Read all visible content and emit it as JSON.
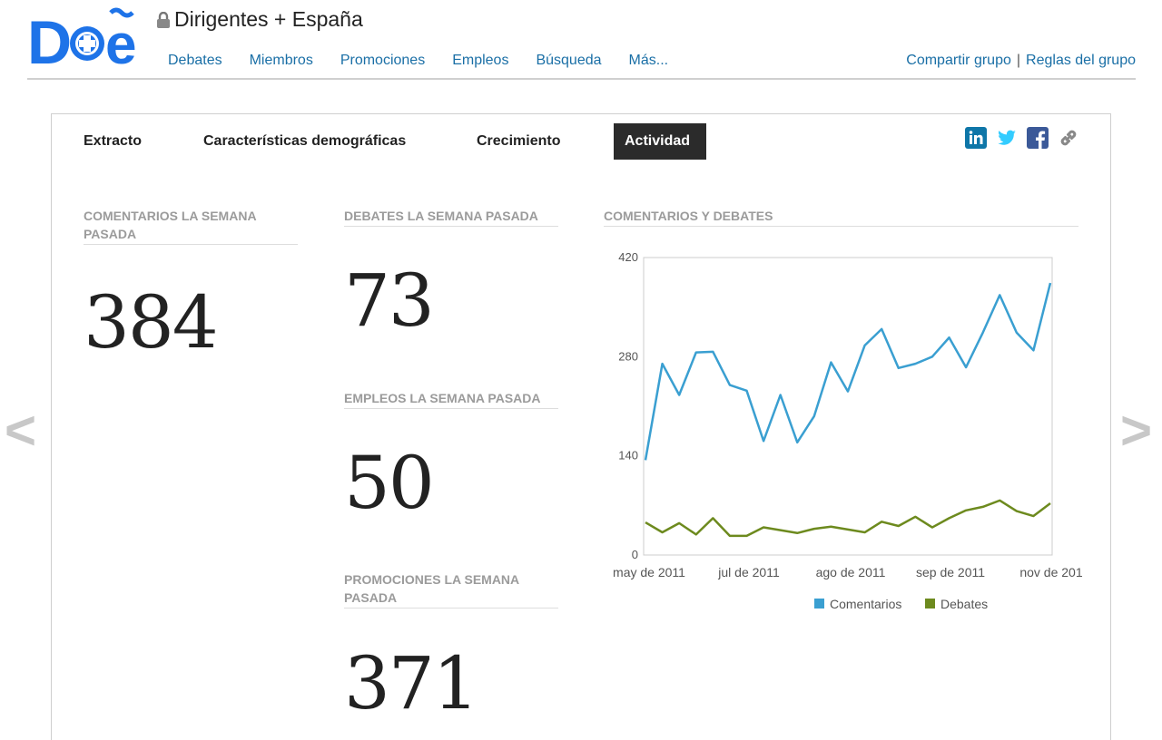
{
  "group": {
    "title": "Dirigentes + España"
  },
  "nav": [
    "Debates",
    "Miembros",
    "Promociones",
    "Empleos",
    "Búsqueda",
    "Más..."
  ],
  "group_links": {
    "share": "Compartir grupo",
    "separator": "|",
    "rules": "Reglas del grupo"
  },
  "tabs": [
    "Extracto",
    "Características demográficas",
    "Crecimiento",
    "Actividad"
  ],
  "active_tab": "Actividad",
  "share_icons": [
    "linkedin-icon",
    "twitter-icon",
    "facebook-icon",
    "link-icon"
  ],
  "stats": {
    "comments": {
      "label": "COMENTARIOS LA SEMANA PASADA",
      "value": "384"
    },
    "debates": {
      "label": "DEBATES LA SEMANA PASADA",
      "value": "73"
    },
    "jobs": {
      "label": "EMPLEOS LA SEMANA PASADA",
      "value": "50"
    },
    "promotions": {
      "label": "PROMOCIONES LA SEMANA PASADA",
      "value": "371"
    }
  },
  "arrows": {
    "prev": "<",
    "next": ">"
  },
  "chart_data": {
    "type": "line",
    "title": "COMENTARIOS Y DEBATES",
    "x_tick_labels": [
      "may de 2011",
      "jul de 2011",
      "ago de 2011",
      "sep de 2011",
      "nov de 201"
    ],
    "y_ticks": [
      0,
      140,
      280,
      420
    ],
    "ylim": [
      0,
      420
    ],
    "grid": false,
    "legend": "bottom",
    "series": [
      {
        "name": "Comentarios",
        "color": "#3a9fd1",
        "values": [
          134,
          270,
          226,
          286,
          287,
          240,
          232,
          161,
          226,
          159,
          196,
          272,
          231,
          296,
          319,
          264,
          270,
          280,
          307,
          265,
          314,
          367,
          314,
          289,
          384
        ]
      },
      {
        "name": "Debates",
        "color": "#6d8a1e",
        "values": [
          46,
          32,
          45,
          29,
          52,
          27,
          27,
          39,
          35,
          31,
          37,
          40,
          36,
          32,
          47,
          41,
          54,
          39,
          52,
          63,
          68,
          77,
          62,
          55,
          73
        ]
      }
    ]
  }
}
